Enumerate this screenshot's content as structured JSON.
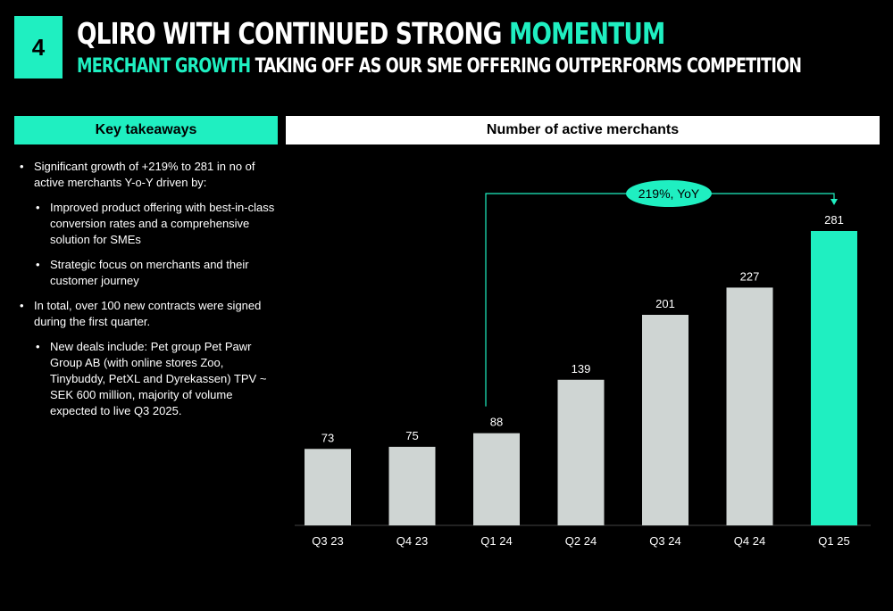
{
  "slide": {
    "number": "4",
    "title_part1": "QLIRO WITH CONTINUED STRONG ",
    "title_accent": "MOMENTUM",
    "subtitle_accent": "MERCHANT GROWTH",
    "subtitle_rest": " TAKING OFF AS OUR SME OFFERING OUTPERFORMS COMPETITION"
  },
  "left_panel": {
    "header": "Key takeaways",
    "bullets": [
      {
        "level": 1,
        "text": "Significant growth of +219% to 281 in no of active merchants Y-o-Y driven by:"
      },
      {
        "level": 2,
        "text": "Improved product offering with best-in-class conversion rates and a comprehensive solution for SMEs"
      },
      {
        "level": 2,
        "text": "Strategic focus on merchants and their customer journey"
      },
      {
        "level": 1,
        "text": "In total, over 100 new contracts were signed during the first quarter."
      },
      {
        "level": 2,
        "text": "New deals include: Pet group Pet Pawr Group AB (with online stores Zoo, Tinybuddy, PetXL and Dyrekassen) TPV ~ SEK 600 million, majority of volume expected to live Q3 2025."
      }
    ]
  },
  "chart_data": {
    "type": "bar",
    "title": "Number of active merchants",
    "categories": [
      "Q3 23",
      "Q4 23",
      "Q1 24",
      "Q2 24",
      "Q3 24",
      "Q4 24",
      "Q1 25"
    ],
    "values": [
      73,
      75,
      88,
      139,
      201,
      227,
      281
    ],
    "ylim": [
      0,
      281
    ],
    "grid": false,
    "bar_color": "#cfd5d3",
    "highlight_color": "#1fefc1",
    "highlight_index": 6,
    "annotation": {
      "text": "219%, YoY",
      "from_index": 2,
      "to_index": 6
    }
  }
}
